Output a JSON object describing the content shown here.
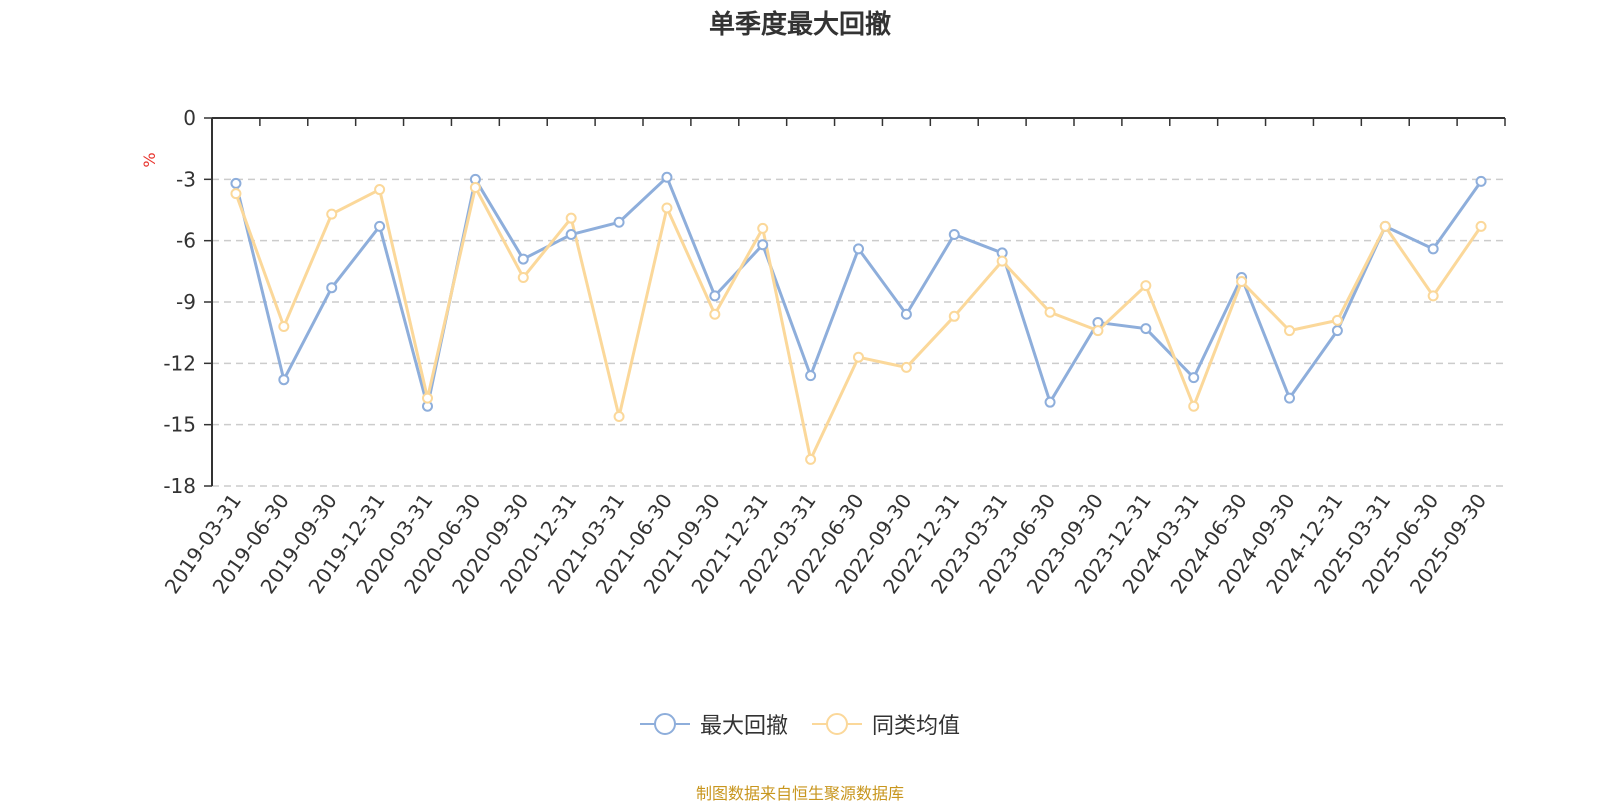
{
  "chart_data": {
    "type": "line",
    "title": "单季度最大回撤",
    "ylabel": "%",
    "xlabel": "",
    "ylim": [
      -18,
      0
    ],
    "yticks": [
      0,
      -3,
      -6,
      -9,
      -12,
      -15,
      -18
    ],
    "grid": true,
    "legend_position": "bottom-center",
    "categories": [
      "2019-03-31",
      "2019-06-30",
      "2019-09-30",
      "2019-12-31",
      "2020-03-31",
      "2020-06-30",
      "2020-09-30",
      "2020-12-31",
      "2021-03-31",
      "2021-06-30",
      "2021-09-30",
      "2021-12-31",
      "2022-03-31",
      "2022-06-30",
      "2022-09-30",
      "2022-12-31",
      "2023-03-31",
      "2023-06-30",
      "2023-09-30",
      "2023-12-31",
      "2024-03-31",
      "2024-06-30",
      "2024-09-30",
      "2024-12-31",
      "2025-03-31",
      "2025-06-30",
      "2025-09-30"
    ],
    "series": [
      {
        "name": "最大回撤",
        "color": "#8eaedb",
        "values": [
          -3.2,
          -12.8,
          -8.3,
          -5.3,
          -14.1,
          -3.0,
          -6.9,
          -5.7,
          -5.1,
          -2.9,
          -8.7,
          -6.2,
          -12.6,
          -6.4,
          -9.6,
          -5.7,
          -6.6,
          -13.9,
          -10.0,
          -10.3,
          -12.7,
          -7.8,
          -13.7,
          -10.4,
          -5.3,
          -6.4,
          -3.1
        ]
      },
      {
        "name": "同类均值",
        "color": "#fbd89a",
        "values": [
          -3.7,
          -10.2,
          -4.7,
          -3.5,
          -13.7,
          -3.4,
          -7.8,
          -4.9,
          -14.6,
          -4.4,
          -9.6,
          -5.4,
          -16.7,
          -11.7,
          -12.2,
          -9.7,
          -7.0,
          -9.5,
          -10.4,
          -8.2,
          -14.1,
          -8.0,
          -10.4,
          -9.9,
          -5.3,
          -8.7,
          -5.3
        ]
      }
    ]
  },
  "footer": {
    "source": "制图数据来自恒生聚源数据库",
    "source_color": "#c8961e"
  },
  "colors": {
    "unit_label": "#e8322c",
    "axis": "#333333",
    "grid": "#cccccc"
  }
}
